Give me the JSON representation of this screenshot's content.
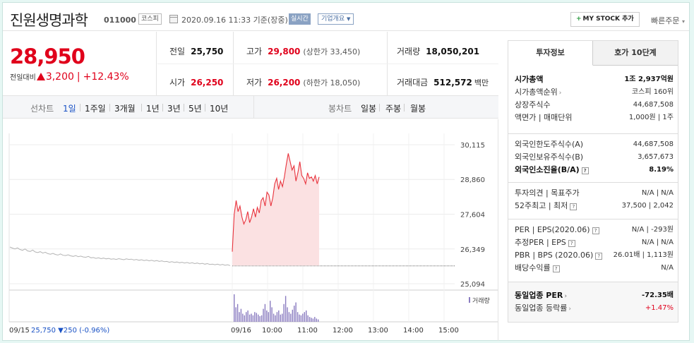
{
  "header": {
    "name": "진원생명과학",
    "code": "011000",
    "market": "코스피",
    "datetime": "2020.09.16 11:33  기준(장중)",
    "realtime": "실시간",
    "company_info": "기업개요",
    "mystock": "MY STOCK 추가",
    "mystock_plus": "+",
    "quick_order": "빠른주문"
  },
  "price": {
    "current": "28,950",
    "change_label": "전일대비",
    "change": "3,200",
    "rate": "+12.43%"
  },
  "quote": {
    "prev_label": "전일",
    "prev": "25,750",
    "high_label": "고가",
    "high": "29,800",
    "upper": "(상한가 33,450)",
    "volume_label": "거래량",
    "volume": "18,050,201",
    "open_label": "시가",
    "open": "26,250",
    "low_label": "저가",
    "low": "26,200",
    "lower": "(하한가 18,050)",
    "amount_label": "거래대금",
    "amount": "512,572",
    "amount_unit": "백만"
  },
  "tabs": {
    "line_label": "선차트",
    "line": [
      "1일",
      "1주일",
      "3개월",
      "1년",
      "3년",
      "5년",
      "10년"
    ],
    "candle_label": "봉차트",
    "candle": [
      "일봉",
      "주봉",
      "월봉"
    ]
  },
  "chart_data": {
    "type": "line",
    "y_ticks": [
      30115,
      28860,
      27604,
      26349,
      25094
    ],
    "ylim": [
      25094,
      30115
    ],
    "x_ticks": [
      "09/16",
      "10:00",
      "11:00",
      "12:00",
      "13:00",
      "14:00",
      "15:00"
    ],
    "prev_day_label": "09/15",
    "prev_day_info": "25,750 ▼250 (-0.96%)",
    "volume_label": "거래량",
    "colors": {
      "today": "#e8323c",
      "fill": "#fbe1e2",
      "prev": "#b4b4b4",
      "volume": "#8a7cc0"
    },
    "prev_day_series": [
      26420,
      26380,
      26350,
      26390,
      26330,
      26300,
      26350,
      26280,
      26260,
      26310,
      26240,
      26220,
      26250,
      26200,
      26230,
      26180,
      26160,
      26190,
      26150,
      26130,
      26170,
      26120,
      26110,
      26140,
      26100,
      26080,
      26110,
      26070,
      26090,
      26060,
      26050,
      26080,
      26030,
      26040,
      26010,
      26030,
      26000,
      26020,
      25990,
      26010,
      25980,
      25990,
      25970,
      26000,
      25980,
      25960,
      25990,
      25970,
      25980,
      25950,
      25970,
      25940,
      25960,
      25930,
      25950,
      25920,
      25940,
      25910,
      25930,
      25900,
      25920,
      25890,
      25900,
      25870,
      25890,
      25860,
      25880,
      25850,
      25870,
      25840,
      25860,
      25830,
      25850,
      25820,
      25840,
      25810,
      25830,
      25800,
      25820,
      25790,
      25800,
      25780,
      25800,
      25770,
      25790,
      25760,
      25780,
      25750
    ],
    "today_series": [
      26250,
      27600,
      28100,
      27700,
      27900,
      27500,
      27250,
      27400,
      27700,
      27300,
      27500,
      27800,
      27500,
      27850,
      27650,
      28100,
      28200,
      27900,
      28400,
      28300,
      27900,
      28200,
      28700,
      28900,
      28500,
      28800,
      28600,
      28950,
      29400,
      29800,
      29500,
      29200,
      29350,
      28800,
      29100,
      29500,
      29000,
      28900,
      28700,
      29100,
      28900,
      28950,
      28800,
      29000,
      28700,
      28950
    ],
    "volume_bars": [
      34,
      18,
      22,
      12,
      16,
      10,
      8,
      12,
      14,
      9,
      10,
      8,
      12,
      11,
      9,
      7,
      8,
      16,
      22,
      14,
      12,
      26,
      18,
      10,
      8,
      12,
      14,
      9,
      10,
      22,
      32,
      18,
      12,
      10,
      15,
      20,
      24,
      12,
      9,
      8,
      10,
      12,
      14,
      8,
      6,
      5,
      4,
      6,
      4,
      3
    ]
  },
  "panel": {
    "tab_info": "투자정보",
    "tab_order": "호가 10단계",
    "group1": [
      {
        "k": "시가총액",
        "v": "1조 2,937억원",
        "bold": true
      },
      {
        "k": "시가총액순위",
        "v": "코스피 160위",
        "chev": true
      },
      {
        "k": "상장주식수",
        "v": "44,687,508"
      },
      {
        "k": "액면가 | 매매단위",
        "v": "1,000원 | 1주"
      }
    ],
    "group2": [
      {
        "k": "외국인한도주식수(A)",
        "v": "44,687,508"
      },
      {
        "k": "외국인보유주식수(B)",
        "v": "3,657,673"
      },
      {
        "k": "외국인소진율(B/A)",
        "v": "8.19%",
        "bold": true,
        "q": true
      }
    ],
    "group3": [
      {
        "k": "투자의견 | 목표주가",
        "v": "N/A | N/A"
      },
      {
        "k": "52주최고 | 최저",
        "v": "37,500 | 2,042",
        "q": true
      }
    ],
    "group4": [
      {
        "k": "PER | EPS(2020.06)",
        "v": "N/A | -293원",
        "q": true
      },
      {
        "k": "추정PER | EPS",
        "v": "N/A | N/A",
        "q": true
      },
      {
        "k": "PBR | BPS (2020.06)",
        "v": "26.01배 | 1,113원",
        "q": true
      },
      {
        "k": "배당수익률",
        "v": "N/A",
        "q": true
      }
    ],
    "group5": [
      {
        "k": "동일업종 PER",
        "v": "-72.35배",
        "bold": true,
        "chev": true
      },
      {
        "k": "동일업종 등락률",
        "v": "+1.47%",
        "chev": true,
        "red": true
      }
    ],
    "q_mark": "?",
    "chev_mark": "›"
  }
}
